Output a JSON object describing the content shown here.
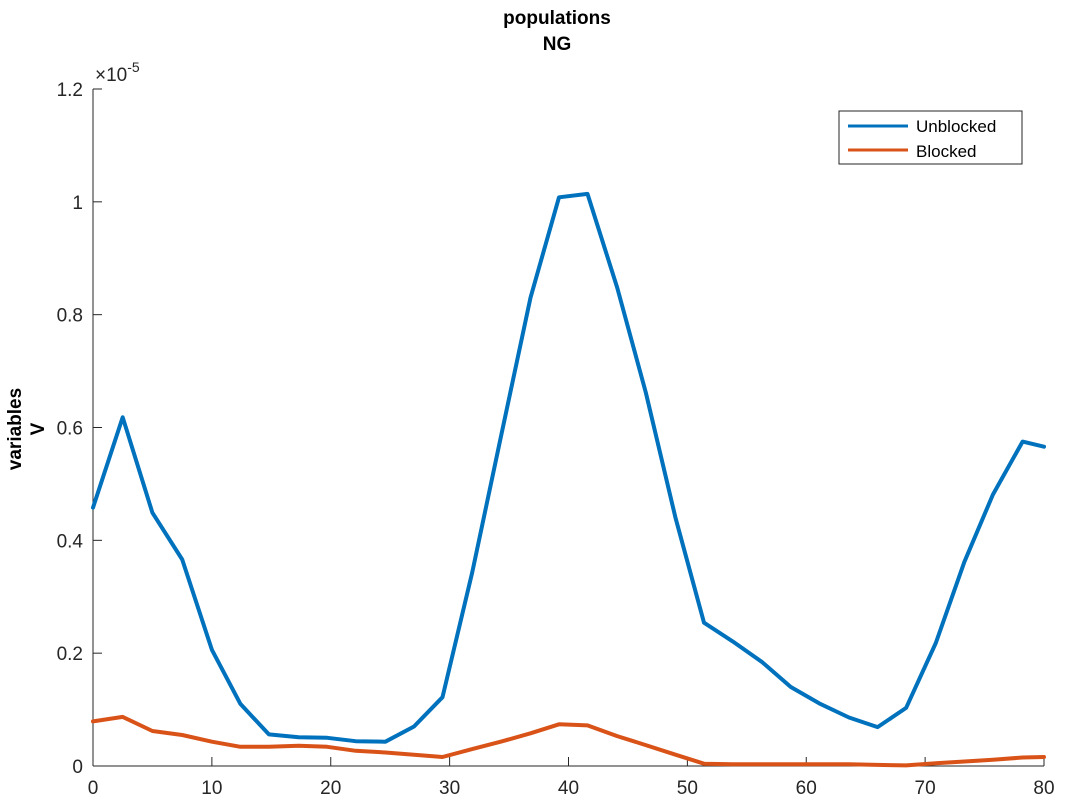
{
  "colors": {
    "unblocked": "#0072BD",
    "blocked": "#D95319",
    "axis": "#262626"
  },
  "chart_data": {
    "type": "line",
    "title": [
      "populations",
      "NG"
    ],
    "ylabel": [
      "variables",
      "V"
    ],
    "xlabel": "",
    "xlim": [
      0,
      80
    ],
    "ylim": [
      0,
      1.2
    ],
    "xticks": [
      0,
      10,
      20,
      30,
      40,
      50,
      60,
      70,
      80
    ],
    "yticks": [
      0,
      0.2,
      0.4,
      0.6,
      0.8,
      1,
      1.2
    ],
    "xtick_labels": [
      "0",
      "10",
      "20",
      "30",
      "40",
      "50",
      "60",
      "70",
      "80"
    ],
    "ytick_labels": [
      "0",
      "0.2",
      "0.4",
      "0.6",
      "0.8",
      "1",
      "1.2"
    ],
    "y_multiplier": {
      "base": "×10",
      "exponent": "-5"
    },
    "legend_position": "top-right",
    "grid": false,
    "series": [
      {
        "name": "Unblocked",
        "color_key": "unblocked",
        "x": [
          0,
          2.5,
          5,
          7.5,
          10,
          12.4,
          14.8,
          17.3,
          19.7,
          22.1,
          24.6,
          27,
          29.4,
          31.9,
          34.3,
          36.8,
          39.2,
          41.6,
          44.1,
          46.5,
          49,
          51.4,
          53.8,
          56.3,
          58.7,
          61.1,
          63.6,
          66,
          68.4,
          70.9,
          73.3,
          75.7,
          78.2,
          80
        ],
        "y": [
          0.458,
          0.618,
          0.449,
          0.366,
          0.206,
          0.11,
          0.056,
          0.051,
          0.05,
          0.044,
          0.043,
          0.07,
          0.122,
          0.343,
          0.582,
          0.83,
          1.008,
          1.014,
          0.848,
          0.662,
          0.44,
          0.254,
          0.221,
          0.184,
          0.14,
          0.111,
          0.086,
          0.069,
          0.103,
          0.218,
          0.362,
          0.481,
          0.575,
          0.566
        ]
      },
      {
        "name": "Blocked",
        "color_key": "blocked",
        "x": [
          0,
          2.5,
          5,
          7.5,
          10,
          12.4,
          14.8,
          17.3,
          19.7,
          22.1,
          24.6,
          27,
          29.4,
          31.9,
          34.3,
          36.8,
          39.2,
          41.6,
          44.1,
          46.5,
          49,
          51.4,
          53.8,
          56.3,
          58.7,
          61.1,
          63.6,
          66,
          68.4,
          70.9,
          73.3,
          75.7,
          78.2,
          80
        ],
        "y": [
          0.079,
          0.087,
          0.062,
          0.055,
          0.043,
          0.034,
          0.034,
          0.036,
          0.034,
          0.027,
          0.024,
          0.02,
          0.016,
          0.03,
          0.043,
          0.058,
          0.074,
          0.072,
          0.053,
          0.037,
          0.02,
          0.004,
          0.003,
          0.003,
          0.003,
          0.003,
          0.003,
          0.002,
          0.001,
          0.005,
          0.008,
          0.011,
          0.015,
          0.016
        ]
      }
    ]
  }
}
